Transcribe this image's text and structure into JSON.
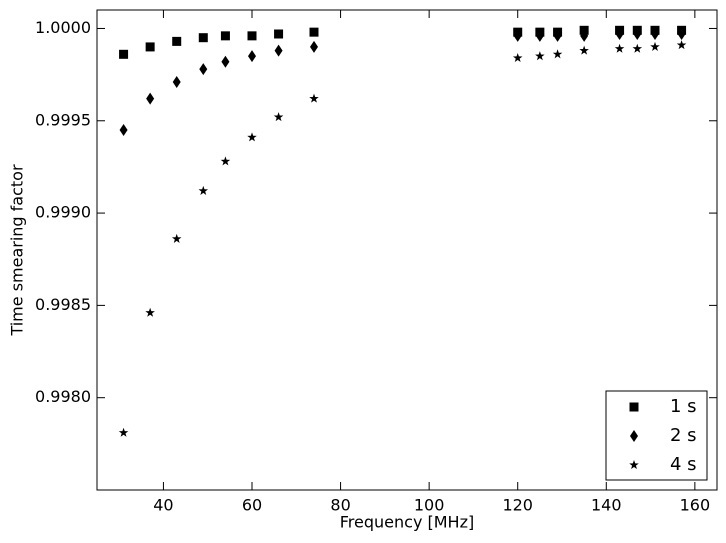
{
  "chart_data": {
    "type": "scatter",
    "xlabel": "Frequency [MHz]",
    "ylabel": "Time smearing factor",
    "x": [
      31,
      37,
      43,
      49,
      54,
      60,
      66,
      74,
      120,
      125,
      129,
      135,
      143,
      147,
      151,
      157
    ],
    "series": [
      {
        "name": "1 s",
        "color": "#000000",
        "marker": "square",
        "values": [
          0.99986,
          0.9999,
          0.99993,
          0.99995,
          0.99996,
          0.99996,
          0.99997,
          0.99998,
          0.99998,
          0.99998,
          0.99998,
          0.99999,
          0.99999,
          0.99999,
          0.99999,
          0.99999
        ]
      },
      {
        "name": "2 s",
        "color": "#000000",
        "marker": "diamond",
        "values": [
          0.99945,
          0.99962,
          0.99971,
          0.99978,
          0.99982,
          0.99985,
          0.99988,
          0.9999,
          0.99996,
          0.99996,
          0.99996,
          0.99996,
          0.99997,
          0.99997,
          0.99997,
          0.99997
        ]
      },
      {
        "name": "4 s",
        "color": "#000000",
        "marker": "star",
        "values": [
          0.99781,
          0.99846,
          0.99886,
          0.99912,
          0.99928,
          0.99941,
          0.99952,
          0.99962,
          0.99984,
          0.99985,
          0.99986,
          0.99988,
          0.99989,
          0.99989,
          0.9999,
          0.99991
        ]
      }
    ],
    "xlim": [
      25,
      165
    ],
    "xticks": [
      40,
      60,
      80,
      100,
      120,
      140,
      160
    ],
    "ylim": [
      0.9975,
      1.0001
    ],
    "yticks": [
      {
        "value": 0.998,
        "label": "0.9980"
      },
      {
        "value": 0.9985,
        "label": "0.9985"
      },
      {
        "value": 0.999,
        "label": "0.9990"
      },
      {
        "value": 0.9995,
        "label": "0.9995"
      },
      {
        "value": 1,
        "label": "1.0000"
      }
    ],
    "legend": "lower right",
    "grid": false
  }
}
